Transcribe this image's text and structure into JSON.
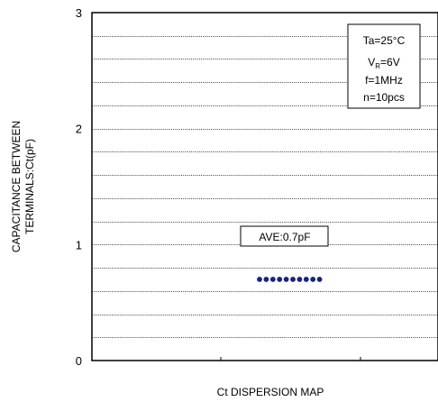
{
  "chart_data": {
    "type": "scatter",
    "xlabel": "Ct DISPERSION MAP",
    "ylabel_lines": [
      "CAPACITANCE BETWEEN",
      "TERMINALS:Ct(pF)"
    ],
    "ylim": [
      0,
      3
    ],
    "yticks": [
      {
        "value": 0,
        "label": "0"
      },
      {
        "value": 1,
        "label": "1"
      },
      {
        "value": 2,
        "label": "2"
      },
      {
        "value": 3,
        "label": "3"
      }
    ],
    "grid_step": 0.2,
    "grid": true,
    "x": [
      1,
      2,
      3,
      4,
      5,
      6,
      7,
      8,
      9,
      10
    ],
    "values": [
      0.7,
      0.7,
      0.7,
      0.7,
      0.7,
      0.7,
      0.7,
      0.7,
      0.7,
      0.7
    ],
    "marker_color": "#1a237e",
    "legend_placement": "top-right",
    "conditions": {
      "ta": "Ta=25°C",
      "vr_prefix": "V",
      "vr_sub": "R",
      "vr_suffix": "=6V",
      "freq": "f=1MHz",
      "count": "n=10pcs"
    },
    "average_label": "AVE:0.7pF"
  }
}
